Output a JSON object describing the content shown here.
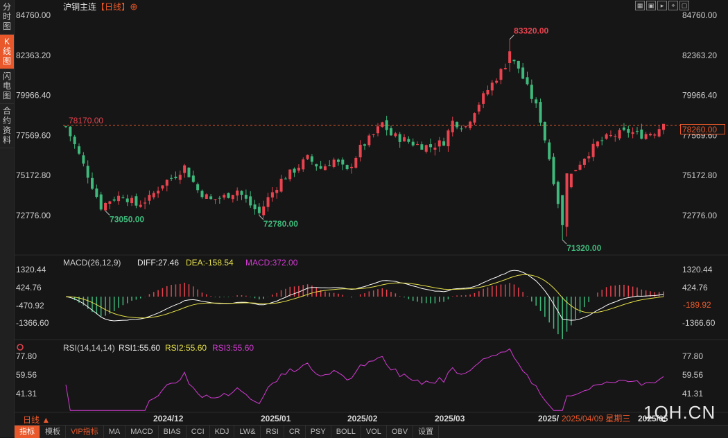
{
  "sidebar": {
    "items": [
      {
        "label": "分时图",
        "active": false
      },
      {
        "label": "K线图",
        "active": true
      },
      {
        "label": "闪电图",
        "active": false
      },
      {
        "label": "合约资料",
        "active": false
      }
    ]
  },
  "header": {
    "symbol": "沪铜主连",
    "period": "【日线】",
    "add_icon": "circle-plus-icon",
    "window_controls": [
      "grid-icon",
      "restore-icon",
      "play-icon",
      "crosshair-icon",
      "window-icon"
    ]
  },
  "main_chart": {
    "y_ticks": [
      "84760.00",
      "82363.20",
      "79966.40",
      "77569.60",
      "75172.80",
      "72776.00"
    ],
    "reference_line_label": "78170.00",
    "reference_line_value": 78170,
    "last_price_tag": "78260.00",
    "annotations": [
      {
        "label": "83320.00",
        "value": 83320
      },
      {
        "label": "73050.00",
        "value": 73050
      },
      {
        "label": "72780.00",
        "value": 72780
      },
      {
        "label": "71320.00",
        "value": 71320
      }
    ],
    "colors": {
      "up": "#e8434f",
      "down": "#3fb97b",
      "ref": "#e8582a"
    }
  },
  "chart_data": [
    {
      "type": "candlestick",
      "x": "trading days (Oct 2024 – May 2025)",
      "y_range": [
        70720,
        85360
      ],
      "candles": "see drawing script (ohlc series)"
    },
    {
      "type": "line",
      "indicator": "MACD",
      "params_label": "MACD(26,12,9)",
      "diff_label": "DIFF:27.46",
      "dea_label": "DEA:-158.54",
      "macd_label": "MACD:372.00",
      "y_ticks": [
        "1320.44",
        "424.76",
        "-470.92",
        "-1366.60"
      ],
      "current_tag": "-189.92",
      "colors": {
        "diff": "#ffffff",
        "dea": "#e6e04a",
        "macd": "#d43bd4"
      }
    },
    {
      "type": "line",
      "indicator": "RSI",
      "params_label": "RSI(14,14,14)",
      "rsi1_label": "RSI1:55.60",
      "rsi2_label": "RSI2:55.60",
      "rsi3_label": "RSI3:55.60",
      "y_ticks": [
        "77.80",
        "59.56",
        "41.31"
      ],
      "colors": {
        "rsi1": "#e6e6e6",
        "rsi2": "#e6e04a",
        "rsi3": "#d43bd4"
      }
    }
  ],
  "x_axis": {
    "period_label": "日线 ▲",
    "ticks": [
      "2024/12",
      "2025/01",
      "2025/02",
      "2025/03",
      "2025/",
      "2025/05"
    ],
    "cursor_date": "2025/04/09 星期三"
  },
  "toolbar": {
    "items": [
      {
        "label": "指标",
        "active": true
      },
      {
        "label": "模板",
        "active": false
      },
      {
        "label": "VIP指标",
        "vip": true
      },
      {
        "label": "MA"
      },
      {
        "label": "MACD"
      },
      {
        "label": "BIAS"
      },
      {
        "label": "CCI"
      },
      {
        "label": "KDJ"
      },
      {
        "label": "LW&"
      },
      {
        "label": "RSI"
      },
      {
        "label": "CR"
      },
      {
        "label": "PSY"
      },
      {
        "label": "BOLL"
      },
      {
        "label": "VOL"
      },
      {
        "label": "OBV"
      },
      {
        "label": "设置"
      }
    ]
  },
  "watermark": "1QH.CN"
}
